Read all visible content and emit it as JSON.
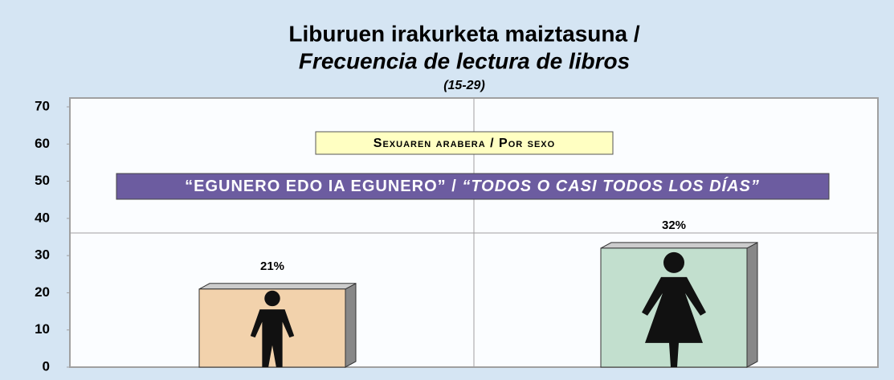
{
  "chart_data": {
    "type": "bar",
    "title": "Liburuen irakurketa maiztasuna /",
    "subtitle": "Frecuencia de lectura de libros",
    "subtitle2": "(15-29)",
    "annotations": [
      "Sexuaren arabera / Por sexo",
      "“EGUNERO EDO IA EGUNERO” /",
      "“TODOS O CASI TODOS LOS DÍAS”"
    ],
    "categories": [
      null,
      null
    ],
    "values": [
      21,
      32
    ],
    "value_labels": [
      "21%",
      "32%"
    ],
    "colors": [
      "#f2d2ac",
      "#c2dfce"
    ],
    "ylim": [
      0,
      70
    ],
    "yticks": [
      0,
      10,
      20,
      30,
      40,
      50,
      60,
      70
    ]
  }
}
